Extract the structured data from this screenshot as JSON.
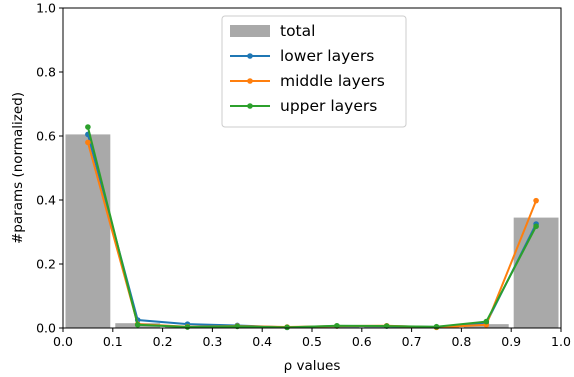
{
  "chart_data": {
    "type": "bar+line",
    "xlabel": "ρ values",
    "ylabel": "#params (normalized)",
    "xlim": [
      0.0,
      1.0
    ],
    "ylim": [
      0.0,
      1.0
    ],
    "x_ticks": [
      "0.0",
      "0.1",
      "0.2",
      "0.3",
      "0.4",
      "0.5",
      "0.6",
      "0.7",
      "0.8",
      "0.9",
      "1.0"
    ],
    "y_ticks": [
      "0.0",
      "0.2",
      "0.4",
      "0.6",
      "0.8",
      "1.0"
    ],
    "grid": false,
    "legend_position": "top-center",
    "bins": [
      0.05,
      0.15,
      0.25,
      0.35,
      0.45,
      0.55,
      0.65,
      0.75,
      0.85,
      0.95
    ],
    "bar_width": 0.09,
    "bars": {
      "name": "total",
      "color": "#a9a9a9",
      "values": [
        0.605,
        0.015,
        0.005,
        0.005,
        0.003,
        0.005,
        0.005,
        0.004,
        0.012,
        0.345
      ]
    },
    "series": [
      {
        "name": "lower layers",
        "color": "#1f77b4",
        "x": [
          0.05,
          0.15,
          0.25,
          0.35,
          0.45,
          0.55,
          0.65,
          0.75,
          0.85,
          0.95
        ],
        "values": [
          0.605,
          0.025,
          0.012,
          0.008,
          0.002,
          0.006,
          0.006,
          0.003,
          0.015,
          0.325
        ]
      },
      {
        "name": "middle layers",
        "color": "#ff7f0e",
        "x": [
          0.05,
          0.15,
          0.25,
          0.35,
          0.45,
          0.55,
          0.65,
          0.75,
          0.85,
          0.95
        ],
        "values": [
          0.58,
          0.012,
          0.004,
          0.006,
          0.003,
          0.006,
          0.007,
          0.002,
          0.01,
          0.398
        ]
      },
      {
        "name": "upper layers",
        "color": "#2ca02c",
        "x": [
          0.05,
          0.15,
          0.25,
          0.35,
          0.45,
          0.55,
          0.65,
          0.75,
          0.85,
          0.95
        ],
        "values": [
          0.628,
          0.01,
          0.003,
          0.005,
          0.002,
          0.007,
          0.006,
          0.004,
          0.02,
          0.318
        ]
      }
    ]
  }
}
